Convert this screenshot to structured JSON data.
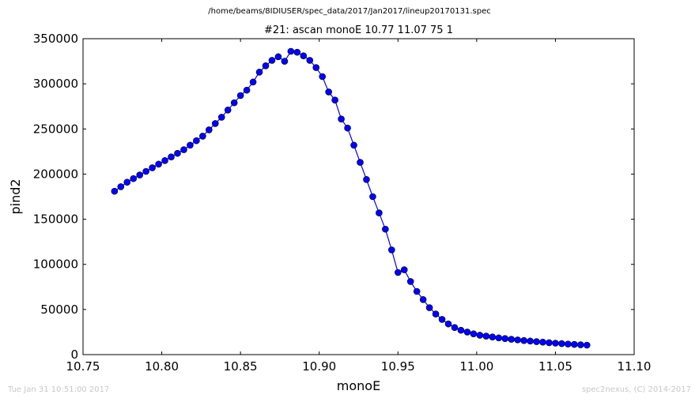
{
  "figure": {
    "suptitle": "/home/beams/8IDIUSER/spec_data/2017/Jan2017/lineup20170131.spec",
    "timestamp": "Tue Jan 31 10:51:00 2017",
    "credit": "spec2nexus, (C) 2014-2017"
  },
  "chart_data": {
    "type": "line",
    "title": "#21: ascan  monoE 10.77 11.07  75 1",
    "xlabel": "monoE",
    "ylabel": "pind2",
    "xlim": [
      10.75,
      11.1
    ],
    "ylim": [
      0,
      350000
    ],
    "xticks": [
      "10.75",
      "10.80",
      "10.85",
      "10.90",
      "10.95",
      "11.00",
      "11.05",
      "11.10"
    ],
    "yticks": [
      "0",
      "50000",
      "100000",
      "150000",
      "200000",
      "250000",
      "300000",
      "350000"
    ],
    "grid": false,
    "marker": "circle",
    "color": "#0000ff",
    "series": [
      {
        "x": [
          10.77,
          10.774,
          10.778,
          10.782,
          10.786,
          10.79,
          10.794,
          10.798,
          10.802,
          10.806,
          10.81,
          10.814,
          10.818,
          10.822,
          10.826,
          10.83,
          10.834,
          10.838,
          10.842,
          10.846,
          10.85,
          10.854,
          10.858,
          10.862,
          10.866,
          10.87,
          10.874,
          10.878,
          10.882,
          10.886,
          10.89,
          10.894,
          10.898,
          10.902,
          10.906,
          10.91,
          10.914,
          10.918,
          10.922,
          10.926,
          10.93,
          10.934,
          10.938,
          10.942,
          10.946,
          10.95,
          10.954,
          10.958,
          10.962,
          10.966,
          10.97,
          10.974,
          10.978,
          10.982,
          10.986,
          10.99,
          10.994,
          10.998,
          11.002,
          11.006,
          11.01,
          11.014,
          11.018,
          11.022,
          11.026,
          11.03,
          11.034,
          11.038,
          11.042,
          11.046,
          11.05,
          11.054,
          11.058,
          11.062,
          11.066,
          11.07
        ],
        "values": [
          181000,
          186000,
          191000,
          195000,
          199000,
          203000,
          207000,
          211000,
          215000,
          219000,
          223000,
          227000,
          232000,
          237000,
          242000,
          249000,
          256000,
          263000,
          271000,
          279000,
          287000,
          293000,
          302000,
          313000,
          320000,
          326000,
          330000,
          325000,
          336000,
          335000,
          331000,
          326000,
          318000,
          308000,
          291000,
          282000,
          261000,
          251000,
          232000,
          213000,
          194000,
          175000,
          157000,
          139000,
          116000,
          91000,
          94000,
          81000,
          70000,
          61000,
          52000,
          45000,
          39000,
          34000,
          30000,
          27000,
          25000,
          23000,
          21500,
          20500,
          19500,
          18500,
          17800,
          17000,
          16300,
          15600,
          15000,
          14400,
          13800,
          13200,
          12700,
          12200,
          11700,
          11300,
          10900,
          10500
        ]
      }
    ]
  }
}
